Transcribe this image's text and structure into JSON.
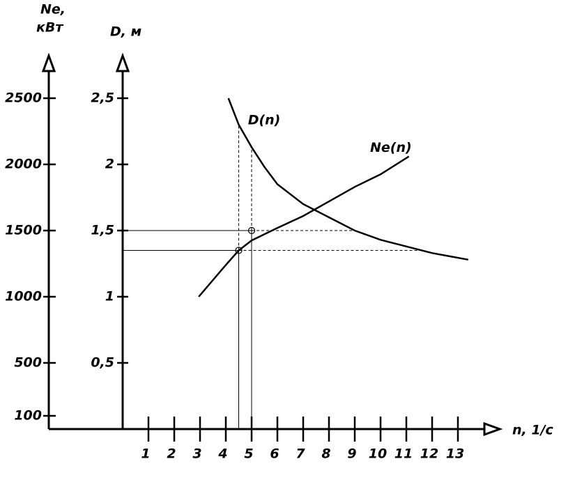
{
  "chart_data": {
    "type": "line",
    "x_label": "n, 1/c",
    "y_label": "D, м",
    "y2_label": [
      "Ne,",
      "кВт"
    ],
    "xlim": [
      0,
      14
    ],
    "xticks": [
      1,
      2,
      3,
      4,
      5,
      6,
      7,
      8,
      9,
      10,
      11,
      12,
      13
    ],
    "ylim": [
      0,
      2.8
    ],
    "yticks": [
      {
        "value": 0.5,
        "label": "0,5"
      },
      1,
      {
        "value": 1.5,
        "label": "1,5"
      },
      2,
      {
        "value": 2.5,
        "label": "2,5"
      }
    ],
    "y2lim": [
      0,
      2800
    ],
    "y2ticks": [
      100,
      500,
      1000,
      1500,
      2000,
      2500
    ],
    "series": [
      {
        "name": "D(n)",
        "color": "#000000",
        "x": [
          4.1,
          4.5,
          5,
          5.5,
          6,
          7,
          8,
          9,
          10,
          11,
          12,
          13.4
        ],
        "values": [
          2.5,
          2.3,
          2.13,
          1.98,
          1.85,
          1.7,
          1.6,
          1.5,
          1.43,
          1.38,
          1.33,
          1.28
        ]
      },
      {
        "name": "Ne(n)",
        "color": "#000000",
        "axis": "y2",
        "x": [
          2.95,
          4,
          4.5,
          5,
          6,
          7,
          8,
          9,
          10,
          11.1
        ],
        "values": [
          1000,
          1240,
          1350,
          1425,
          1520,
          1610,
          1720,
          1830,
          1925,
          2060
        ]
      }
    ],
    "markers": {
      "x": [
        4.5,
        5
      ],
      "values": [
        1.35,
        1.5
      ]
    }
  }
}
